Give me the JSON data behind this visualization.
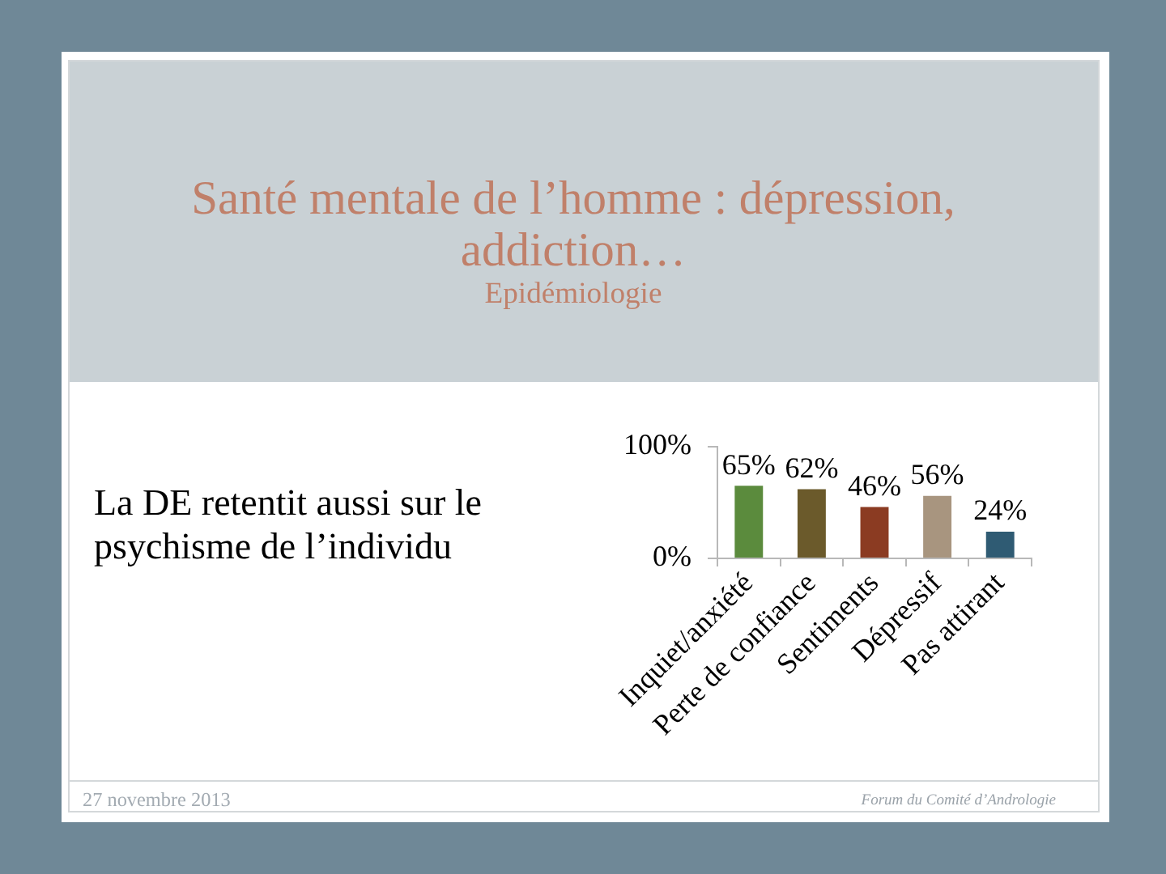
{
  "chart_data": {
    "type": "bar",
    "title": "Santé mentale de l’homme : dépression, addiction…",
    "subtitle": "Epidémiologie",
    "annotations": [
      "La DE retentit aussi sur le psychisme de l’individu",
      "27 novembre 2013",
      "Forum du Comité d’Andrologie"
    ],
    "categories": [
      "Inquiet/anxiété",
      "Perte de confiance",
      "Sentiments",
      "Dépressif",
      "Pas attirant"
    ],
    "values": [
      65,
      62,
      46,
      56,
      24
    ],
    "colors": [
      "#5b8b3d",
      "#6b5a2b",
      "#8b3b22",
      "#a8957f",
      "#2f5b73"
    ],
    "value_labels": [
      "65%",
      "62%",
      "46%",
      "56%",
      "24%"
    ],
    "ylim": [
      0,
      100
    ],
    "yticks": [
      {
        "value": 0,
        "label": "0%"
      },
      {
        "value": 100,
        "label": "100%"
      }
    ],
    "legend": false
  }
}
